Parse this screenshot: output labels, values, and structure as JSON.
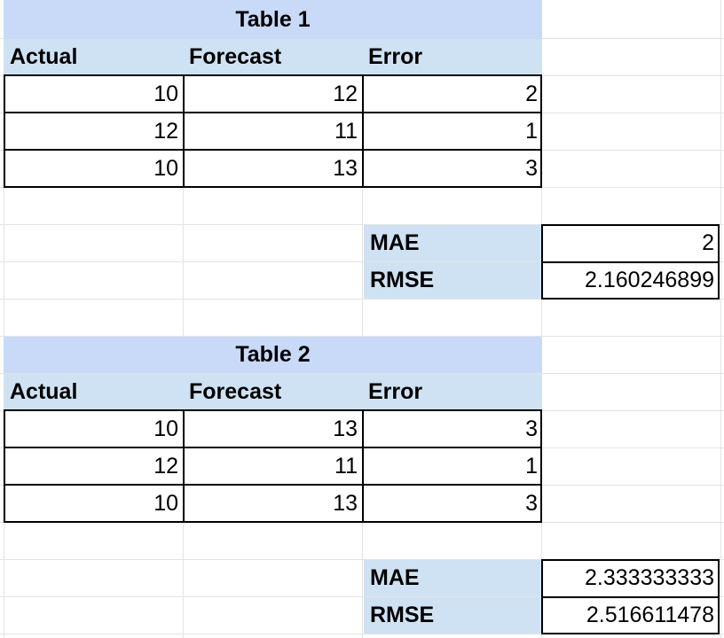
{
  "table1": {
    "title": "Table 1",
    "headers": [
      "Actual",
      "Forecast",
      "Error"
    ],
    "rows": [
      [
        "10",
        "12",
        "2"
      ],
      [
        "12",
        "11",
        "1"
      ],
      [
        "10",
        "13",
        "3"
      ]
    ],
    "metrics": [
      {
        "label": "MAE",
        "value": "2"
      },
      {
        "label": "RMSE",
        "value": "2.160246899"
      }
    ]
  },
  "table2": {
    "title": "Table 2",
    "headers": [
      "Actual",
      "Forecast",
      "Error"
    ],
    "rows": [
      [
        "10",
        "13",
        "3"
      ],
      [
        "12",
        "11",
        "1"
      ],
      [
        "10",
        "13",
        "3"
      ]
    ],
    "metrics": [
      {
        "label": "MAE",
        "value": "2.333333333"
      },
      {
        "label": "RMSE",
        "value": "2.516611478"
      }
    ]
  },
  "colors": {
    "title_fill": "#c9daf8",
    "header_fill": "#cfe2f3",
    "gridline": "#e2e3e3"
  }
}
